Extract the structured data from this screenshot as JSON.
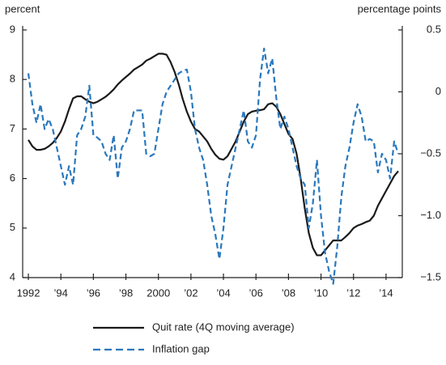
{
  "chart_data": {
    "type": "line",
    "y_label": "percent",
    "y2_label": "percentage points",
    "x": [
      1992,
      1992.25,
      1992.5,
      1992.75,
      1993,
      1993.25,
      1993.5,
      1993.75,
      1994,
      1994.25,
      1994.5,
      1994.75,
      1995,
      1995.25,
      1995.5,
      1995.75,
      1996,
      1996.25,
      1996.5,
      1996.75,
      1997,
      1997.25,
      1997.5,
      1997.75,
      1998,
      1998.25,
      1998.5,
      1998.75,
      1999,
      1999.25,
      1999.5,
      1999.75,
      2000,
      2000.25,
      2000.5,
      2000.75,
      2001,
      2001.25,
      2001.5,
      2001.75,
      2002,
      2002.25,
      2002.5,
      2002.75,
      2003,
      2003.25,
      2003.5,
      2003.75,
      2004,
      2004.25,
      2004.5,
      2004.75,
      2005,
      2005.25,
      2005.5,
      2005.75,
      2006,
      2006.25,
      2006.5,
      2006.75,
      2007,
      2007.25,
      2007.5,
      2007.75,
      2008,
      2008.25,
      2008.5,
      2008.75,
      2009,
      2009.25,
      2009.5,
      2009.75,
      2010,
      2010.25,
      2010.5,
      2010.75,
      2011,
      2011.25,
      2011.5,
      2011.75,
      2012,
      2012.25,
      2012.5,
      2012.75,
      2013,
      2013.25,
      2013.5,
      2013.75,
      2014,
      2014.25,
      2014.5,
      2014.75
    ],
    "xlim": [
      1991.65,
      2015
    ],
    "xticks": [
      1992,
      {
        "value": 1994,
        "label": "’94"
      },
      {
        "value": 1996,
        "label": "’96"
      },
      {
        "value": 1998,
        "label": "’98"
      },
      2000,
      {
        "value": 2002,
        "label": "’02"
      },
      {
        "value": 2004,
        "label": "’04"
      },
      {
        "value": 2006,
        "label": "’06"
      },
      {
        "value": 2008,
        "label": "’08"
      },
      {
        "value": 2010,
        "label": "’10"
      },
      {
        "value": 2012,
        "label": "’12"
      },
      {
        "value": 2014,
        "label": "’14"
      }
    ],
    "ylim": [
      4,
      9
    ],
    "yticks": [
      4,
      5,
      6,
      7,
      8,
      9
    ],
    "y2lim": [
      -1.5,
      0.5
    ],
    "y2ticks": [
      {
        "value": -1.5,
        "label": "−1.5"
      },
      {
        "value": -1,
        "label": "−1.0"
      },
      {
        "value": -0.5,
        "label": "−0.5"
      },
      0,
      0.5
    ],
    "legend": "bottom",
    "series": [
      {
        "name": "Quit rate (4Q moving average)",
        "color": "#1a1a1a",
        "dash": false,
        "values": [
          6.78,
          6.65,
          6.58,
          6.58,
          6.6,
          6.65,
          6.72,
          6.82,
          6.95,
          7.15,
          7.4,
          7.62,
          7.66,
          7.66,
          7.6,
          7.55,
          7.52,
          7.55,
          7.6,
          7.65,
          7.72,
          7.8,
          7.9,
          7.98,
          8.05,
          8.12,
          8.2,
          8.25,
          8.3,
          8.38,
          8.42,
          8.47,
          8.52,
          8.52,
          8.5,
          8.35,
          8.15,
          7.9,
          7.6,
          7.35,
          7.15,
          7.0,
          6.95,
          6.85,
          6.75,
          6.6,
          6.48,
          6.4,
          6.38,
          6.45,
          6.6,
          6.75,
          6.95,
          7.15,
          7.3,
          7.35,
          7.37,
          7.38,
          7.4,
          7.5,
          7.52,
          7.45,
          7.3,
          7.1,
          6.9,
          6.8,
          6.5,
          6.0,
          5.4,
          4.9,
          4.6,
          4.45,
          4.45,
          4.55,
          4.65,
          4.75,
          4.75,
          4.75,
          4.82,
          4.9,
          5.0,
          5.05,
          5.08,
          5.12,
          5.15,
          5.25,
          5.45,
          5.6,
          5.75,
          5.9,
          6.05,
          6.15
        ]
      },
      {
        "name": "Inflation gap",
        "color": "#2a78bd",
        "dash": true,
        "axis": "y2",
        "values": [
          0.15,
          -0.1,
          -0.25,
          -0.1,
          -0.3,
          -0.22,
          -0.3,
          -0.45,
          -0.6,
          -0.75,
          -0.6,
          -0.75,
          -0.35,
          -0.3,
          -0.2,
          0.05,
          -0.35,
          -0.37,
          -0.4,
          -0.5,
          -0.55,
          -0.35,
          -0.7,
          -0.45,
          -0.4,
          -0.3,
          -0.15,
          -0.15,
          -0.15,
          -0.5,
          -0.52,
          -0.5,
          -0.3,
          -0.1,
          0.0,
          0.05,
          0.1,
          0.15,
          0.17,
          0.18,
          0.0,
          -0.3,
          -0.45,
          -0.55,
          -0.75,
          -1.0,
          -1.15,
          -1.35,
          -1.1,
          -0.75,
          -0.6,
          -0.45,
          -0.3,
          -0.15,
          -0.4,
          -0.45,
          -0.35,
          0.1,
          0.35,
          0.15,
          0.27,
          -0.05,
          -0.3,
          -0.2,
          -0.3,
          -0.45,
          -0.6,
          -0.7,
          -0.75,
          -1.1,
          -0.9,
          -0.55,
          -1.0,
          -1.3,
          -1.45,
          -1.55,
          -1.25,
          -0.85,
          -0.6,
          -0.45,
          -0.25,
          -0.1,
          -0.2,
          -0.4,
          -0.38,
          -0.4,
          -0.65,
          -0.5,
          -0.55,
          -0.7,
          -0.4,
          -0.5
        ]
      }
    ]
  }
}
